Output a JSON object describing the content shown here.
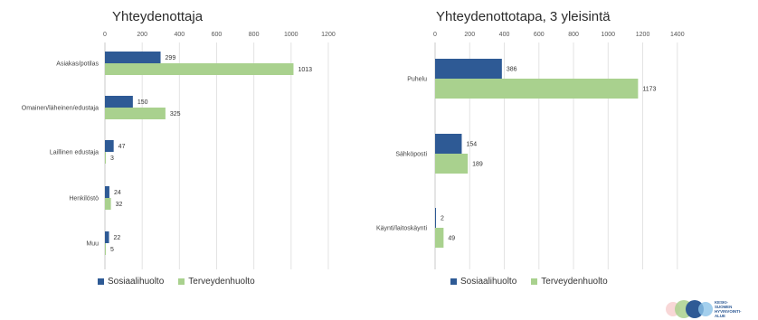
{
  "colors": {
    "sosiaalihuolto": "#2e5a95",
    "terveydenhuolto": "#a9d18e",
    "axis_text": "#555555"
  },
  "legend": {
    "series1": "Sosiaalihuolto",
    "series2": "Terveydenhuolto"
  },
  "logo": {
    "text_lines": [
      "KESKI-",
      "SUOMEN",
      "HYVINVOINTI-",
      "ALUE"
    ]
  },
  "chart_data": [
    {
      "type": "bar",
      "orientation": "horizontal",
      "title": "Yhteydenottaja",
      "categories": [
        "Asiakas/potilas",
        "Omainen/läheinen/edustaja",
        "Laillinen edustaja",
        "Henkilöstö",
        "Muu"
      ],
      "series": [
        {
          "name": "Sosiaalihuolto",
          "values": [
            299,
            150,
            47,
            24,
            22
          ]
        },
        {
          "name": "Terveydenhuolto",
          "values": [
            1013,
            325,
            3,
            32,
            5
          ]
        }
      ],
      "xlim": [
        0,
        1200
      ],
      "ticks": [
        "0",
        "200",
        "400",
        "600",
        "800",
        "1000",
        "1200"
      ],
      "grid": true,
      "legend_position": "bottom-left"
    },
    {
      "type": "bar",
      "orientation": "horizontal",
      "title": "Yhteydenottotapa, 3 yleisintä",
      "categories": [
        "Puhelu",
        "Sähköposti",
        "Käynti/laitoskäynti"
      ],
      "series": [
        {
          "name": "Sosiaalihuolto",
          "values": [
            386,
            154,
            2
          ]
        },
        {
          "name": "Terveydenhuolto",
          "values": [
            1173,
            189,
            49
          ]
        }
      ],
      "xlim": [
        0,
        1400
      ],
      "ticks": [
        "0",
        "200",
        "400",
        "600",
        "800",
        "1000",
        "1200",
        "1400"
      ],
      "grid": true,
      "legend_position": "bottom-left"
    }
  ]
}
